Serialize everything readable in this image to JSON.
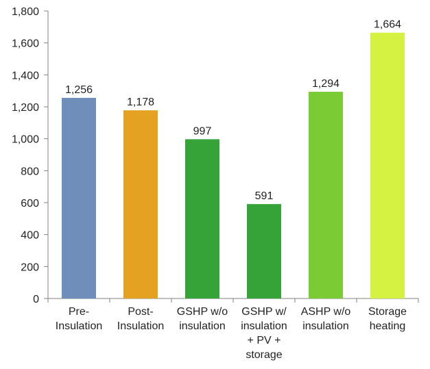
{
  "chart_data": {
    "type": "bar",
    "categories": [
      "Pre-Insulation",
      "Post-Insulation",
      "GSHP w/o insulation",
      "GSHP w/ insulation + PV + storage",
      "ASHP w/o insulation",
      "Storage heating"
    ],
    "category_lines": [
      [
        "Pre-",
        "Insulation"
      ],
      [
        "Post-",
        "Insulation"
      ],
      [
        "GSHP w/o",
        "insulation"
      ],
      [
        "GSHP w/",
        "insulation",
        "+ PV +",
        "storage"
      ],
      [
        "ASHP w/o",
        "insulation"
      ],
      [
        "Storage",
        "heating"
      ]
    ],
    "values": [
      1256,
      1178,
      997,
      591,
      1294,
      1664
    ],
    "value_labels": [
      "1,256",
      "1,178",
      "997",
      "591",
      "1,294",
      "1,664"
    ],
    "bar_colors": [
      "#6F8FBA",
      "#E5A122",
      "#36A338",
      "#36A338",
      "#7ACB34",
      "#D5F141"
    ],
    "ylim": [
      0,
      1800
    ],
    "ytick_values": [
      0,
      200,
      400,
      600,
      800,
      1000,
      1200,
      1400,
      1600,
      1800
    ],
    "ytick_labels": [
      "0",
      "200",
      "400",
      "600",
      "800",
      "1,000",
      "1,200",
      "1,400",
      "1,600",
      "1,800"
    ],
    "grid": false,
    "legend": "none",
    "title": "",
    "xlabel": "",
    "ylabel": ""
  }
}
